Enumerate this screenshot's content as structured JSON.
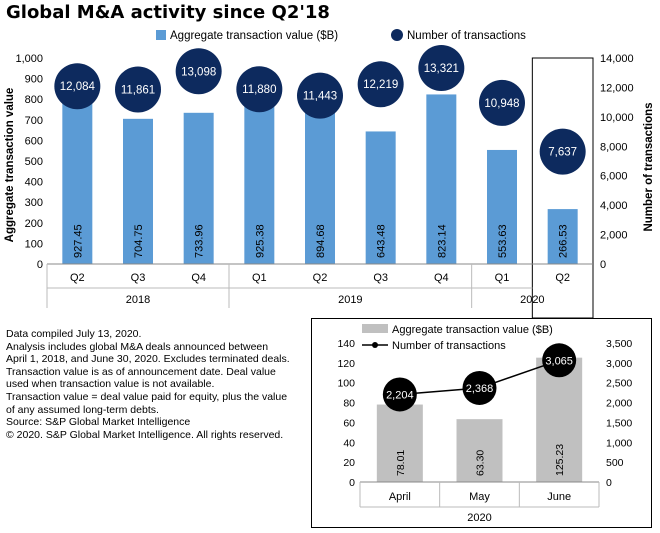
{
  "title": "Global M&A activity since Q2'18",
  "notes": [
    "Data compiled July 13, 2020.",
    "Analysis includes global M&A deals announced between",
    "April 1, 2018, and June 30, 2020. Excludes terminated deals.",
    "Transaction value is as of announcement date. Deal value",
    "used when transaction value is not available.",
    "Transaction value = deal value paid for equity, plus the value",
    "of any assumed long-term debts.",
    "Source: S&P Global Market Intelligence",
    "© 2020. S&P Global Market Intelligence. All rights reserved."
  ],
  "colors": {
    "bar_main": "#5b9bd5",
    "circle": "#0d2a5e",
    "bar_inset": "#c0c0c0",
    "line": "#000000"
  },
  "chart_data": [
    {
      "type": "bar",
      "title": "Global M&A activity since Q2'18",
      "categories": [
        "Q2",
        "Q3",
        "Q4",
        "Q1",
        "Q2",
        "Q3",
        "Q4",
        "Q1",
        "Q2"
      ],
      "groups": [
        {
          "label": "2018",
          "count": 3
        },
        {
          "label": "2019",
          "count": 4
        },
        {
          "label": "2020",
          "count": 2
        }
      ],
      "series": [
        {
          "name": "Aggregate transaction value ($B)",
          "axis": "left",
          "values": [
            927.45,
            704.75,
            733.96,
            925.38,
            894.68,
            643.48,
            823.14,
            553.63,
            266.53
          ],
          "labels": [
            "927.45",
            "704.75",
            "733.96",
            "925.38",
            "894.68",
            "643.48",
            "823.14",
            "553.63",
            "266.53"
          ]
        },
        {
          "name": "Number of transactions",
          "axis": "right",
          "render": "circle",
          "values": [
            12084,
            11861,
            13098,
            11880,
            11443,
            12219,
            13321,
            10948,
            7637
          ],
          "labels": [
            "12,084",
            "11,861",
            "13,098",
            "11,880",
            "11,443",
            "12,219",
            "13,321",
            "10,948",
            "7,637"
          ]
        }
      ],
      "ylabel": "Aggregate transaction value",
      "ylim": [
        0,
        1000
      ],
      "yticks": [
        "0",
        "100",
        "200",
        "300",
        "400",
        "500",
        "600",
        "700",
        "800",
        "900",
        "1,000"
      ],
      "y2label": "Number of transactions",
      "y2lim": [
        0,
        14000
      ],
      "y2ticks": [
        "0",
        "2,000",
        "4,000",
        "6,000",
        "8,000",
        "10,000",
        "12,000",
        "14,000"
      ],
      "legend": "top",
      "highlight_category_index": 8
    },
    {
      "type": "bar",
      "categories": [
        "April",
        "May",
        "June"
      ],
      "group_label": "2020",
      "series": [
        {
          "name": "Aggregate transaction value ($B)",
          "axis": "left",
          "values": [
            78.01,
            63.3,
            125.23
          ],
          "labels": [
            "78.01",
            "63.30",
            "125.23"
          ]
        },
        {
          "name": "Number of transactions",
          "axis": "right",
          "render": "line",
          "values": [
            2204,
            2368,
            3065
          ],
          "labels": [
            "2,204",
            "2,368",
            "3,065"
          ]
        }
      ],
      "ylim": [
        0,
        140
      ],
      "yticks": [
        "0",
        "20",
        "40",
        "60",
        "80",
        "100",
        "120",
        "140"
      ],
      "y2lim": [
        0,
        3500
      ],
      "y2ticks": [
        "0",
        "500",
        "1,000",
        "1,500",
        "2,000",
        "2,500",
        "3,000",
        "3,500"
      ],
      "legend": "top-left"
    }
  ]
}
